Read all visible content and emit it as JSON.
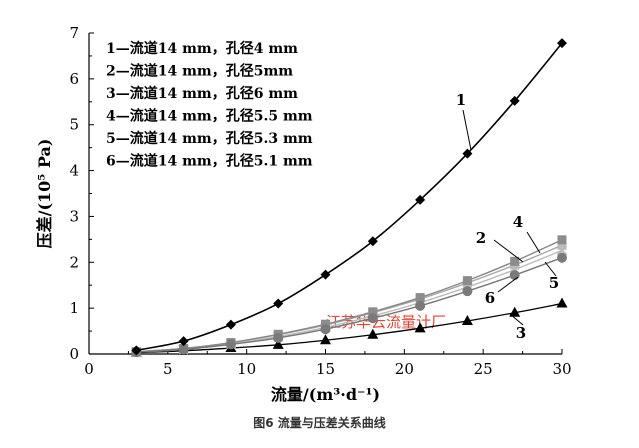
{
  "caption": "图6 流量与压差关系曲线",
  "watermark": "江苏华云流量计厂",
  "chart_data": {
    "type": "line",
    "title": "",
    "xlabel": "流量/(m³·d⁻¹)",
    "ylabel": "压差/(10⁵ Pa)",
    "xlim": [
      0,
      30
    ],
    "ylim": [
      0,
      7
    ],
    "x_ticks": [
      "0",
      "5",
      "10",
      "15",
      "20",
      "25",
      "30"
    ],
    "y_ticks": [
      "0",
      "1",
      "2",
      "3",
      "4",
      "5",
      "6",
      "7"
    ],
    "grid": false,
    "legend_position": "top-left",
    "x": [
      3,
      6,
      9,
      12,
      15,
      18,
      21,
      24,
      27,
      30
    ],
    "series": [
      {
        "name": "1—流道14 mm，孔径4 mm",
        "number": "1",
        "marker": "diamond",
        "values": [
          0.08,
          0.28,
          0.64,
          1.1,
          1.73,
          2.46,
          3.36,
          4.37,
          5.52,
          6.78
        ]
      },
      {
        "name": "2—流道14 mm，孔径5mm",
        "number": "2",
        "marker": "square-light",
        "values": [
          0.05,
          0.12,
          0.24,
          0.42,
          0.63,
          0.9,
          1.2,
          1.55,
          1.94,
          2.37
        ]
      },
      {
        "name": "3—流道14 mm，孔径6 mm",
        "number": "3",
        "marker": "triangle",
        "values": [
          0.03,
          0.07,
          0.13,
          0.2,
          0.3,
          0.42,
          0.56,
          0.72,
          0.9,
          1.1
        ]
      },
      {
        "name": "4—流道14 mm，孔径5.5 mm",
        "number": "4",
        "marker": "square",
        "values": [
          0.05,
          0.12,
          0.25,
          0.43,
          0.65,
          0.92,
          1.23,
          1.6,
          2.02,
          2.49
        ]
      },
      {
        "name": "5—流道14 mm，孔径5.3 mm",
        "number": "5",
        "marker": "cross",
        "values": [
          0.04,
          0.1,
          0.22,
          0.38,
          0.58,
          0.83,
          1.12,
          1.46,
          1.84,
          2.26
        ]
      },
      {
        "name": "6—流道14 mm，孔径5.1 mm",
        "number": "6",
        "marker": "circle",
        "values": [
          0.04,
          0.1,
          0.21,
          0.35,
          0.54,
          0.78,
          1.05,
          1.37,
          1.72,
          2.1
        ]
      }
    ]
  }
}
